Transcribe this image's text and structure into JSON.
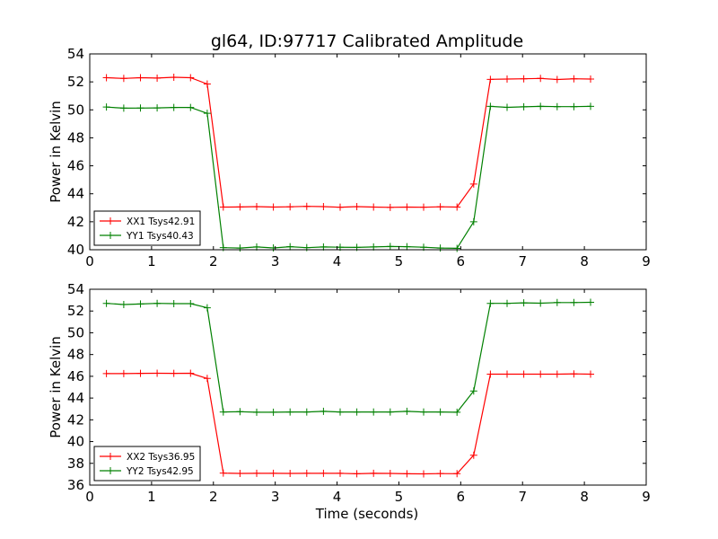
{
  "chart_data": [
    {
      "type": "line",
      "title": "gl64, ID:97717 Calibrated Amplitude",
      "xlabel": "",
      "ylabel": "Power in Kelvin",
      "xlim": [
        0,
        9
      ],
      "ylim": [
        40,
        54
      ],
      "xticks": [
        "0",
        "1",
        "2",
        "3",
        "4",
        "5",
        "6",
        "7",
        "8",
        "9"
      ],
      "yticks": [
        "40",
        "42",
        "44",
        "46",
        "48",
        "50",
        "52",
        "54"
      ],
      "grid": false,
      "legend_position": "lower-left",
      "x": [
        0.27,
        0.55,
        0.82,
        1.09,
        1.36,
        1.63,
        1.9,
        2.16,
        2.43,
        2.7,
        2.97,
        3.24,
        3.51,
        3.78,
        4.05,
        4.32,
        4.59,
        4.86,
        5.13,
        5.4,
        5.67,
        5.94,
        6.21,
        6.48,
        6.75,
        7.02,
        7.29,
        7.56,
        7.83,
        8.1
      ],
      "series": [
        {
          "name": "XX1 Tsys42.91",
          "color": "#ff0000",
          "values": [
            52.3,
            52.25,
            52.3,
            52.27,
            52.33,
            52.3,
            51.85,
            43.05,
            43.06,
            43.08,
            43.05,
            43.07,
            43.1,
            43.08,
            43.04,
            43.08,
            43.05,
            43.03,
            43.05,
            43.04,
            43.07,
            43.05,
            44.7,
            52.18,
            52.2,
            52.22,
            52.25,
            52.17,
            52.22,
            52.2
          ]
        },
        {
          "name": "YY1 Tsys40.43",
          "color": "#008000",
          "values": [
            50.2,
            50.12,
            50.13,
            50.14,
            50.17,
            50.17,
            49.75,
            40.15,
            40.12,
            40.2,
            40.13,
            40.22,
            40.15,
            40.2,
            40.18,
            40.17,
            40.2,
            40.23,
            40.22,
            40.18,
            40.12,
            40.1,
            42.0,
            50.25,
            50.18,
            50.22,
            50.25,
            50.23,
            50.23,
            50.25
          ]
        }
      ]
    },
    {
      "type": "line",
      "title": "",
      "xlabel": "Time (seconds)",
      "ylabel": "Power in Kelvin",
      "xlim": [
        0,
        9
      ],
      "ylim": [
        36,
        54
      ],
      "xticks": [
        "0",
        "1",
        "2",
        "3",
        "4",
        "5",
        "6",
        "7",
        "8",
        "9"
      ],
      "yticks": [
        "36",
        "38",
        "40",
        "42",
        "44",
        "46",
        "48",
        "50",
        "52",
        "54"
      ],
      "grid": false,
      "legend_position": "lower-left",
      "x": [
        0.27,
        0.55,
        0.82,
        1.09,
        1.36,
        1.63,
        1.9,
        2.16,
        2.43,
        2.7,
        2.97,
        3.24,
        3.51,
        3.78,
        4.05,
        4.32,
        4.59,
        4.86,
        5.13,
        5.4,
        5.67,
        5.94,
        6.21,
        6.48,
        6.75,
        7.02,
        7.29,
        7.56,
        7.83,
        8.1
      ],
      "series": [
        {
          "name": "XX2 Tsys36.95",
          "color": "#ff0000",
          "values": [
            46.25,
            46.25,
            46.27,
            46.28,
            46.27,
            46.28,
            45.8,
            37.1,
            37.07,
            37.08,
            37.08,
            37.07,
            37.08,
            37.08,
            37.08,
            37.04,
            37.08,
            37.07,
            37.04,
            37.03,
            37.06,
            37.05,
            38.75,
            46.2,
            46.2,
            46.2,
            46.2,
            46.2,
            46.22,
            46.2
          ]
        },
        {
          "name": "YY2 Tsys42.95",
          "color": "#008000",
          "values": [
            52.7,
            52.6,
            52.65,
            52.7,
            52.68,
            52.68,
            52.3,
            42.72,
            42.75,
            42.7,
            42.7,
            42.72,
            42.72,
            42.78,
            42.72,
            42.72,
            42.72,
            42.72,
            42.78,
            42.72,
            42.72,
            42.7,
            44.65,
            52.7,
            52.7,
            52.75,
            52.72,
            52.78,
            52.78,
            52.8
          ]
        }
      ]
    }
  ]
}
